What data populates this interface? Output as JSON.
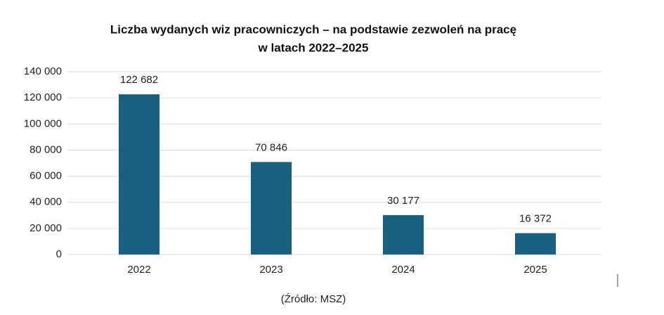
{
  "chart_data": {
    "type": "bar",
    "title": [
      "Liczba wydanych wiz pracowniczych – na podstawie zezwoleń na pracę",
      "w latach 2022–2025"
    ],
    "categories": [
      "2022",
      "2023",
      "2024",
      "2025"
    ],
    "values": [
      122682,
      70846,
      30177,
      16372
    ],
    "value_labels": [
      "122 682",
      "70 846",
      "30 177",
      "16 372"
    ],
    "color": "#17607f",
    "ylim": [
      0,
      140000
    ],
    "yticks": [
      0,
      {
        "value": 20000,
        "label": "20 000"
      },
      {
        "value": 40000,
        "label": "40 000"
      },
      {
        "value": 60000,
        "label": "60 000"
      },
      {
        "value": 80000,
        "label": "80 000"
      },
      {
        "value": 100000,
        "label": "100 000"
      },
      {
        "value": 120000,
        "label": "120 000"
      },
      {
        "value": 140000,
        "label": "140 000"
      }
    ],
    "grid": true,
    "source": "(Źródło: MSZ)"
  }
}
